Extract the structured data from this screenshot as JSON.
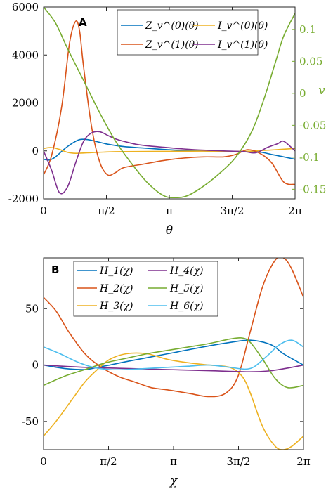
{
  "chart_data": [
    {
      "type": "line",
      "panel_label": "A",
      "xlabel": "θ",
      "ylabel": "",
      "y2label": "v",
      "xlim": [
        0,
        6.2832
      ],
      "ylim": [
        -2000,
        6000
      ],
      "y2lim": [
        -0.165,
        0.135
      ],
      "xticks": [
        0,
        1.5708,
        3.1416,
        4.7124,
        6.2832
      ],
      "xtick_labels": [
        "0",
        "π/2",
        "π",
        "3π/2",
        "2π"
      ],
      "yticks": [
        -2000,
        0,
        2000,
        4000,
        6000
      ],
      "ytick_labels": [
        "-2000",
        "0",
        "2000",
        "4000",
        "6000"
      ],
      "y2ticks": [
        0.1,
        0.05,
        0,
        -0.05,
        -0.1,
        -0.15
      ],
      "y2tick_labels": [
        "0.1",
        "0.05",
        "0",
        "-0.05",
        "-0.1",
        "-0.15"
      ],
      "legend_position": "top-right",
      "series": [
        {
          "name": "Z_v^(0)(θ)",
          "color": "#0072BD",
          "axis": "left",
          "x": [
            0,
            0.15,
            0.3,
            0.5,
            0.7,
            0.9,
            1.1,
            1.3,
            1.6,
            2.0,
            2.5,
            3.0,
            3.5,
            4.0,
            4.5,
            5.0,
            5.4,
            5.7,
            6.0,
            6.2832
          ],
          "y": [
            -350,
            -380,
            -250,
            50,
            300,
            470,
            470,
            400,
            280,
            180,
            120,
            60,
            20,
            0,
            -20,
            -30,
            -50,
            -150,
            -250,
            -350
          ]
        },
        {
          "name": "I_v^(0)(θ)",
          "color": "#EDB120",
          "axis": "left",
          "x": [
            0,
            0.2,
            0.4,
            0.6,
            0.8,
            1.1,
            1.5,
            2.0,
            3.0,
            4.0,
            5.0,
            5.5,
            5.9,
            6.2832
          ],
          "y": [
            100,
            140,
            60,
            -60,
            -100,
            -80,
            -50,
            -30,
            -20,
            -10,
            -20,
            20,
            60,
            100
          ]
        },
        {
          "name": "Z_v^(1)(θ)",
          "color": "#D95319",
          "axis": "left",
          "x": [
            0,
            0.2,
            0.45,
            0.65,
            0.8,
            0.9,
            1.0,
            1.2,
            1.4,
            1.6,
            1.8,
            2.0,
            2.5,
            3.0,
            3.5,
            4.0,
            4.5,
            4.8,
            5.1,
            5.4,
            5.7,
            6.0,
            6.2832
          ],
          "y": [
            -1000,
            -200,
            1800,
            4500,
            5400,
            5000,
            3500,
            1000,
            -450,
            -1000,
            -900,
            -700,
            -550,
            -400,
            -300,
            -250,
            -250,
            -150,
            50,
            -100,
            -500,
            -1300,
            -1400
          ]
        },
        {
          "name": "I_v^(1)(θ)",
          "color": "#7E2F8E",
          "axis": "left",
          "x": [
            0,
            0.2,
            0.4,
            0.6,
            0.8,
            1.0,
            1.2,
            1.4,
            1.6,
            1.8,
            2.0,
            2.4,
            3.0,
            3.5,
            4.0,
            4.5,
            5.0,
            5.3,
            5.6,
            5.85,
            6.0,
            6.2832
          ],
          "y": [
            0,
            -800,
            -1750,
            -1500,
            -500,
            400,
            750,
            800,
            650,
            500,
            400,
            250,
            150,
            80,
            30,
            0,
            -30,
            -80,
            150,
            300,
            400,
            0
          ]
        },
        {
          "name": "v",
          "color": "#77AC30",
          "axis": "right",
          "x": [
            0,
            0.3,
            0.6,
            1.0,
            1.4,
            1.8,
            2.2,
            2.6,
            3.0,
            3.3,
            3.6,
            4.0,
            4.4,
            4.8,
            5.2,
            5.5,
            5.8,
            6.0,
            6.2832
          ],
          "y": [
            0.135,
            0.11,
            0.07,
            0.02,
            -0.03,
            -0.075,
            -0.11,
            -0.14,
            -0.16,
            -0.163,
            -0.16,
            -0.145,
            -0.125,
            -0.1,
            -0.06,
            -0.01,
            0.05,
            0.09,
            0.125
          ]
        }
      ]
    },
    {
      "type": "line",
      "panel_label": "B",
      "xlabel": "χ",
      "ylabel": "",
      "xlim": [
        0,
        6.2832
      ],
      "ylim": [
        -75,
        95
      ],
      "xticks": [
        0,
        1.5708,
        3.1416,
        4.7124,
        6.2832
      ],
      "xtick_labels": [
        "0",
        "π/2",
        "π",
        "3π/2",
        "2π"
      ],
      "yticks": [
        50,
        0,
        -50
      ],
      "ytick_labels": [
        "50",
        "0",
        "-50"
      ],
      "legend_position": "top-left",
      "series": [
        {
          "name": "H_1(χ)",
          "color": "#0072BD",
          "x": [
            0,
            0.5,
            1.0,
            1.3,
            1.6,
            2.0,
            3.0,
            4.0,
            4.5,
            5.0,
            5.5,
            5.8,
            6.2832
          ],
          "y": [
            0,
            -3,
            -4,
            -2,
            0,
            3,
            10,
            17,
            20,
            22,
            18,
            10,
            0
          ]
        },
        {
          "name": "H_2(χ)",
          "color": "#D95319",
          "x": [
            0,
            0.3,
            0.6,
            1.0,
            1.4,
            1.8,
            2.2,
            2.6,
            3.0,
            3.5,
            4.0,
            4.4,
            4.7,
            5.0,
            5.3,
            5.6,
            5.8,
            6.0,
            6.2832
          ],
          "y": [
            60,
            48,
            30,
            10,
            -2,
            -10,
            -15,
            -20,
            -22,
            -25,
            -28,
            -25,
            -10,
            30,
            70,
            93,
            95,
            85,
            60
          ]
        },
        {
          "name": "H_3(χ)",
          "color": "#EDB120",
          "x": [
            0,
            0.3,
            0.7,
            1.0,
            1.3,
            1.6,
            2.0,
            2.5,
            3.0,
            3.5,
            4.0,
            4.5,
            4.8,
            5.0,
            5.3,
            5.6,
            5.8,
            6.0,
            6.2832
          ],
          "y": [
            -63,
            -50,
            -30,
            -15,
            -4,
            5,
            10,
            10,
            5,
            2,
            0,
            -2,
            -10,
            -25,
            -55,
            -72,
            -75,
            -72,
            -63
          ]
        },
        {
          "name": "H_4(χ)",
          "color": "#7E2F8E",
          "x": [
            0,
            1.0,
            2.0,
            3.0,
            4.0,
            5.0,
            5.5,
            6.0,
            6.2832
          ],
          "y": [
            0,
            -2,
            -3,
            -4,
            -5,
            -6,
            -5,
            -2,
            0
          ]
        },
        {
          "name": "H_5(χ)",
          "color": "#77AC30",
          "x": [
            0,
            0.5,
            1.0,
            1.5,
            2.0,
            2.5,
            3.0,
            3.5,
            4.0,
            4.5,
            4.8,
            5.0,
            5.3,
            5.6,
            5.9,
            6.2832
          ],
          "y": [
            -18,
            -10,
            -4,
            2,
            6,
            10,
            13,
            16,
            19,
            23,
            24,
            20,
            5,
            -12,
            -20,
            -18
          ]
        },
        {
          "name": "H_6(χ)",
          "color": "#4DBEEE",
          "x": [
            0,
            0.4,
            0.8,
            1.2,
            1.6,
            2.0,
            2.5,
            3.0,
            3.5,
            4.0,
            4.5,
            5.0,
            5.4,
            5.7,
            6.0,
            6.2832
          ],
          "y": [
            16,
            10,
            3,
            -2,
            -4,
            -4,
            -3,
            -2,
            -1,
            0,
            -2,
            -3,
            8,
            18,
            22,
            16
          ]
        }
      ]
    }
  ]
}
